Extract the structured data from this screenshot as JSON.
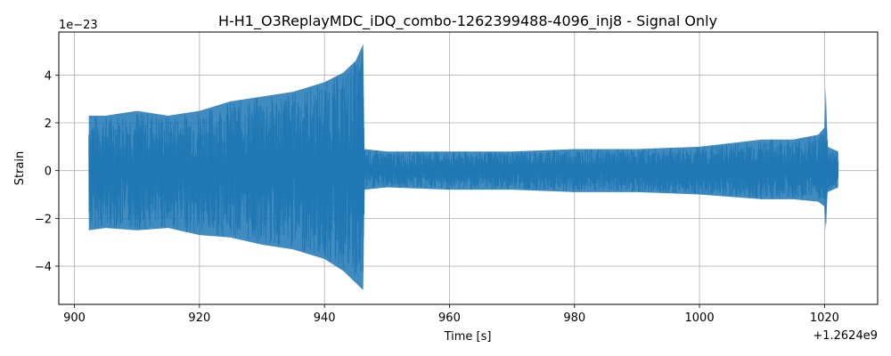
{
  "chart_data": {
    "type": "line",
    "title": "H-H1_O3ReplayMDC_iDQ_combo-1262399488-4096_inj8 - Signal Only",
    "xlabel": "Time [s]",
    "ylabel": "Strain",
    "x_offset_label": "+1.2624e9",
    "y_scale_label": "1e−23",
    "xlim": [
      897.5,
      1028.5
    ],
    "ylim": [
      -5.6,
      5.8
    ],
    "grid": true,
    "line_color": "#1f77b4",
    "x_ticks": [
      {
        "value": 900,
        "label": "900"
      },
      {
        "value": 920,
        "label": "920"
      },
      {
        "value": 940,
        "label": "940"
      },
      {
        "value": 960,
        "label": "960"
      },
      {
        "value": 980,
        "label": "980"
      },
      {
        "value": 1000,
        "label": "1000"
      },
      {
        "value": 1020,
        "label": "1020"
      }
    ],
    "y_ticks": [
      {
        "value": -4,
        "label": "−4"
      },
      {
        "value": -2,
        "label": "−2"
      },
      {
        "value": 0,
        "label": "0"
      },
      {
        "value": 2,
        "label": "2"
      },
      {
        "value": 4,
        "label": "4"
      }
    ],
    "series": [
      {
        "x": [
          902.3,
          905,
          910,
          915,
          920,
          925,
          930,
          935,
          940,
          943,
          945,
          946.2,
          946.4,
          950,
          960,
          970,
          980,
          990,
          1000,
          1010,
          1015,
          1019,
          1020,
          1020.2,
          1020.5,
          1022.2
        ],
        "y_max": [
          2.3,
          2.3,
          2.5,
          2.3,
          2.5,
          2.9,
          3.1,
          3.3,
          3.7,
          4.1,
          4.6,
          5.3,
          0.9,
          0.8,
          0.8,
          0.8,
          0.9,
          0.9,
          1.0,
          1.3,
          1.3,
          1.5,
          1.8,
          3.5,
          1.0,
          0.8
        ],
        "y_min": [
          -2.5,
          -2.4,
          -2.5,
          -2.4,
          -2.7,
          -2.8,
          -3.1,
          -3.3,
          -3.7,
          -4.2,
          -4.7,
          -5.0,
          -0.8,
          -0.7,
          -0.8,
          -0.8,
          -0.9,
          -0.9,
          -1.0,
          -1.2,
          -1.2,
          -1.3,
          -1.5,
          -2.5,
          -0.9,
          -0.7
        ]
      }
    ]
  }
}
